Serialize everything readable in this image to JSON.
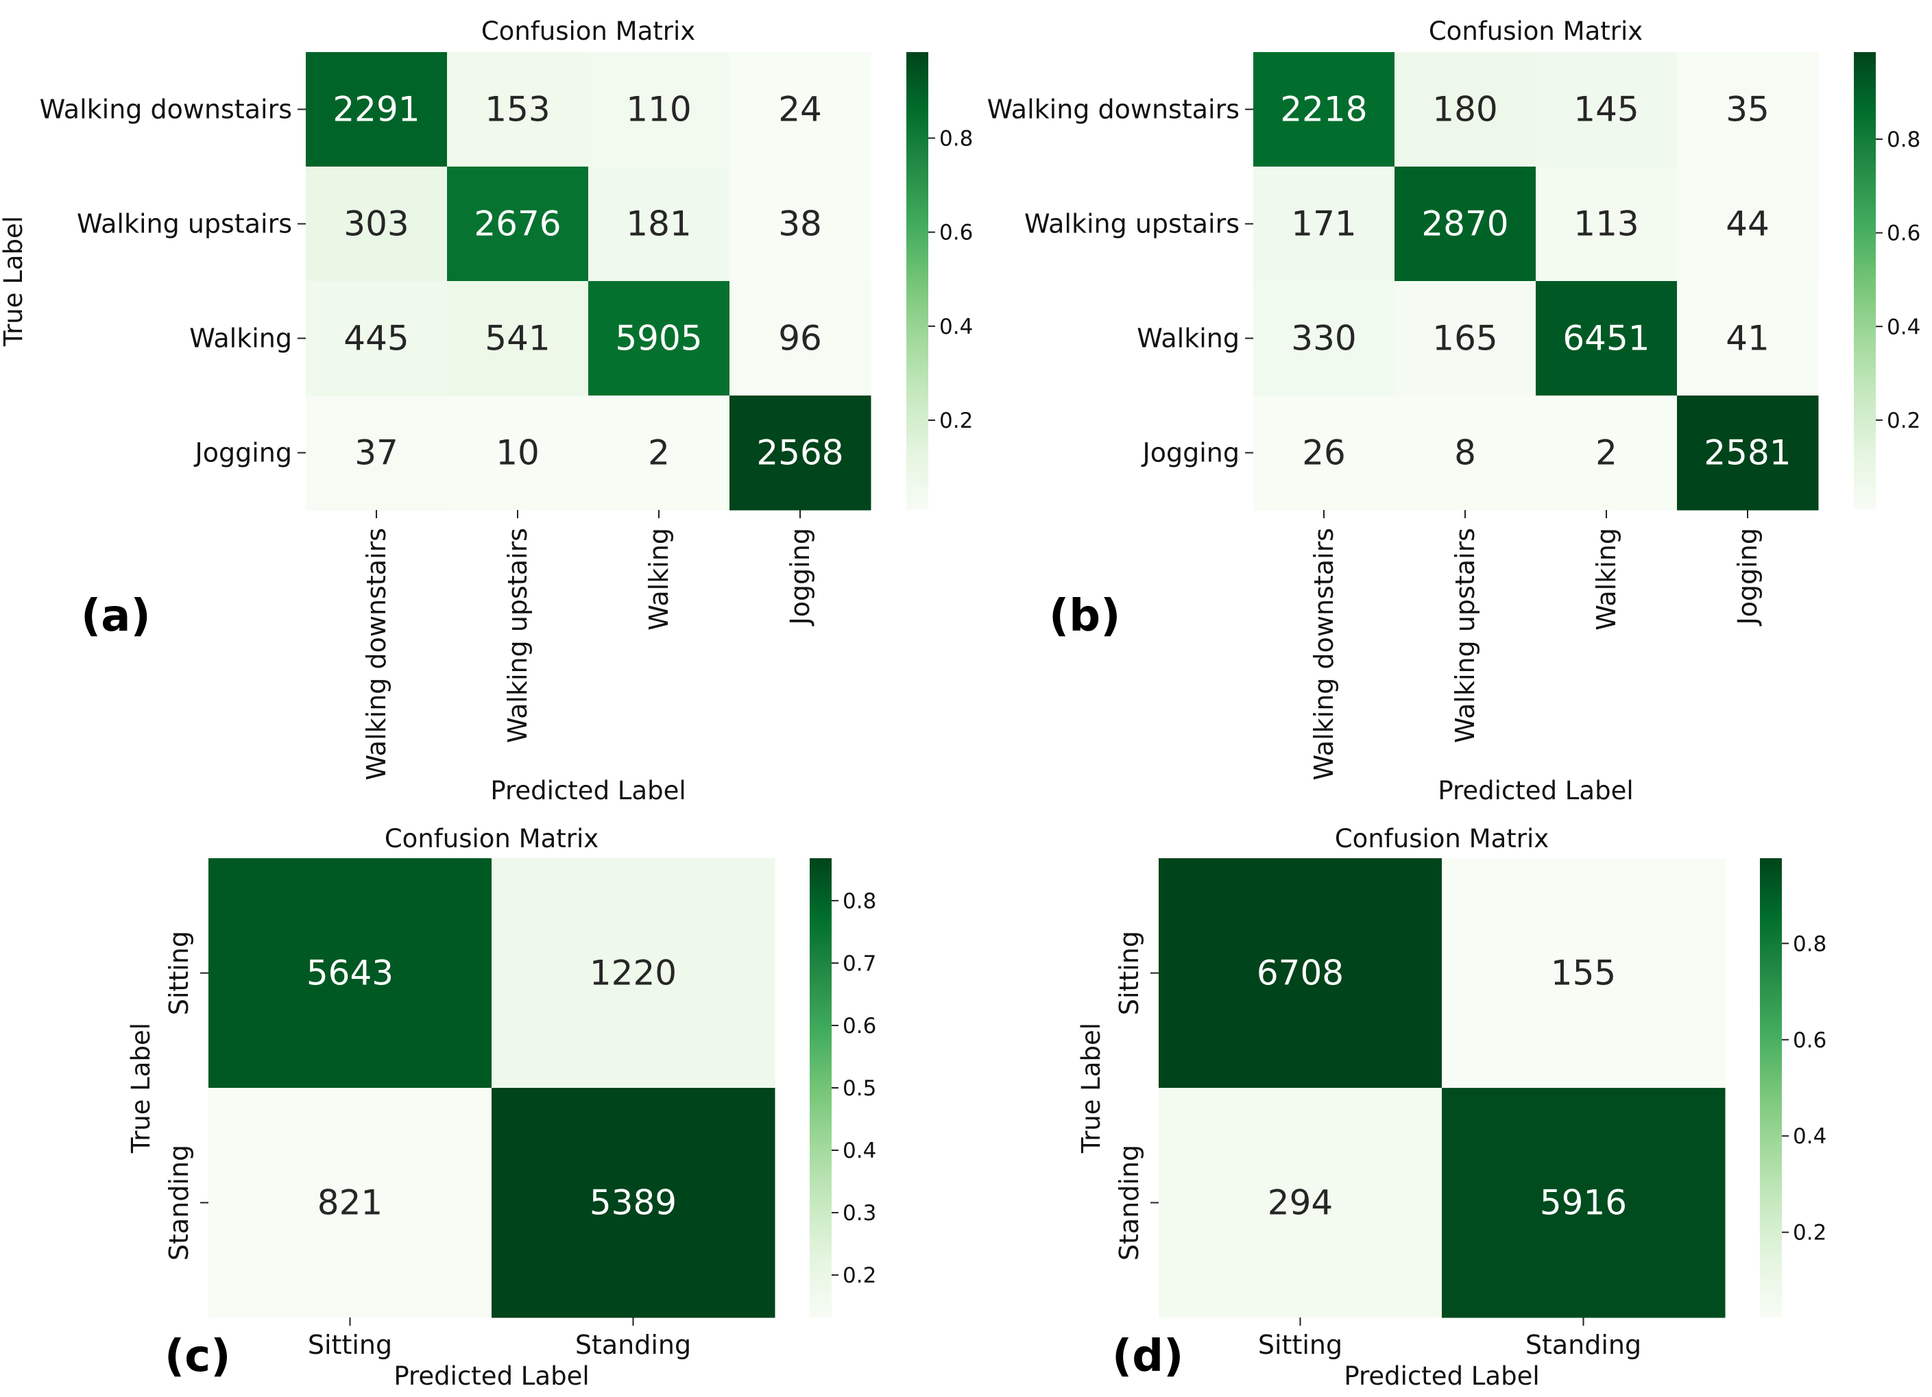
{
  "chart_data": [
    {
      "type": "heatmap",
      "panel_label": "(a)",
      "title": "Confusion Matrix",
      "xlabel": "Predicted Label",
      "ylabel": "True Label",
      "row_labels": [
        "Walking downstairs",
        "Walking upstairs",
        "Walking",
        "Jogging"
      ],
      "col_labels": [
        "Walking downstairs",
        "Walking upstairs",
        "Walking",
        "Jogging"
      ],
      "matrix": [
        [
          2291,
          153,
          110,
          24
        ],
        [
          303,
          2676,
          181,
          38
        ],
        [
          445,
          541,
          5905,
          96
        ],
        [
          37,
          10,
          2,
          2568
        ]
      ],
      "colorbar": {
        "range": [
          0.009,
          0.983
        ],
        "ticks": [
          0.2,
          0.4,
          0.6,
          0.8
        ],
        "tick_labels": [
          "0.2",
          "0.4",
          "0.6",
          "0.8"
        ]
      },
      "colormap": "Greens"
    },
    {
      "type": "heatmap",
      "panel_label": "(b)",
      "title": "Confusion Matrix",
      "xlabel": "Predicted Label",
      "ylabel": "",
      "row_labels": [
        "Walking downstairs",
        "Walking upstairs",
        "Walking",
        "Jogging"
      ],
      "col_labels": [
        "Walking downstairs",
        "Walking upstairs",
        "Walking",
        "Jogging"
      ],
      "matrix": [
        [
          2218,
          180,
          145,
          35
        ],
        [
          171,
          2870,
          113,
          44
        ],
        [
          330,
          165,
          6451,
          41
        ],
        [
          26,
          8,
          2,
          2581
        ]
      ],
      "colorbar": {
        "range": [
          0.008,
          0.986
        ],
        "ticks": [
          0.2,
          0.4,
          0.6,
          0.8
        ],
        "tick_labels": [
          "0.2",
          "0.4",
          "0.6",
          "0.8"
        ]
      },
      "colormap": "Greens"
    },
    {
      "type": "heatmap",
      "panel_label": "(c)",
      "title": "Confusion Matrix",
      "xlabel": "Predicted Label",
      "ylabel": "True Label",
      "row_labels": [
        "Sitting",
        "Standing"
      ],
      "col_labels": [
        "Sitting",
        "Standing"
      ],
      "matrix": [
        [
          5643,
          1220
        ],
        [
          821,
          5389
        ]
      ],
      "colorbar": {
        "range": [
          0.132,
          0.868
        ],
        "ticks": [
          0.2,
          0.3,
          0.4,
          0.5,
          0.6,
          0.7,
          0.8
        ],
        "tick_labels": [
          "0.2",
          "0.3",
          "0.4",
          "0.5",
          "0.6",
          "0.7",
          "0.8"
        ]
      },
      "colormap": "Greens"
    },
    {
      "type": "heatmap",
      "panel_label": "(d)",
      "title": "Confusion Matrix",
      "xlabel": "Predicted Label",
      "ylabel": "True Label",
      "row_labels": [
        "Sitting",
        "Standing"
      ],
      "col_labels": [
        "Sitting",
        "Standing"
      ],
      "matrix": [
        [
          6708,
          155
        ],
        [
          294,
          5916
        ]
      ],
      "colorbar": {
        "range": [
          0.023,
          0.977
        ],
        "ticks": [
          0.2,
          0.4,
          0.6,
          0.8
        ],
        "tick_labels": [
          "0.2",
          "0.4",
          "0.6",
          "0.8"
        ]
      },
      "colormap": "Greens"
    }
  ]
}
